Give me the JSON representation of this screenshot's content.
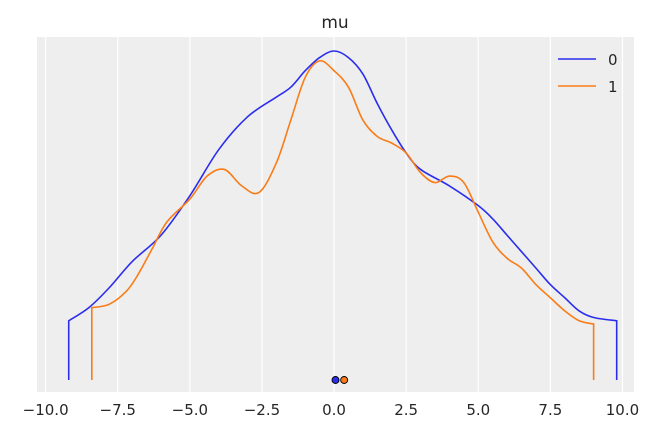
{
  "chart_data": {
    "type": "line",
    "title": "mu",
    "xlabel": "",
    "ylabel": "",
    "xlim": [
      -10.3,
      10.4
    ],
    "ylim": [
      0,
      1
    ],
    "grid": true,
    "y_ticks_shown": false,
    "x_ticks": [
      -10.0,
      -7.5,
      -5.0,
      -2.5,
      0.0,
      2.5,
      5.0,
      7.5,
      10.0
    ],
    "x_tick_labels": [
      "−10.0",
      "−7.5",
      "−5.0",
      "−2.5",
      "0.0",
      "2.5",
      "5.0",
      "7.5",
      "10.0"
    ],
    "legend_position": "top-right",
    "series": [
      {
        "name": "0",
        "color": "#2a2eec",
        "x": [
          -9.2,
          -8.5,
          -7.8,
          -7.0,
          -6.0,
          -5.0,
          -4.0,
          -3.0,
          -2.0,
          -1.5,
          -1.0,
          -0.5,
          0.0,
          0.5,
          1.0,
          1.5,
          2.0,
          2.5,
          3.0,
          4.0,
          5.0,
          5.5,
          6.0,
          6.5,
          7.0,
          7.5,
          8.0,
          8.5,
          9.0,
          9.8
        ],
        "y": [
          0.18,
          0.22,
          0.28,
          0.36,
          0.44,
          0.56,
          0.7,
          0.8,
          0.86,
          0.89,
          0.94,
          0.98,
          1.0,
          0.98,
          0.93,
          0.84,
          0.76,
          0.69,
          0.64,
          0.59,
          0.53,
          0.49,
          0.44,
          0.39,
          0.34,
          0.29,
          0.25,
          0.21,
          0.19,
          0.18
        ],
        "marker_x": 0.05
      },
      {
        "name": "1",
        "color": "#fa7c17",
        "x": [
          -8.4,
          -7.8,
          -7.2,
          -6.8,
          -6.3,
          -5.8,
          -5.0,
          -4.4,
          -3.8,
          -3.2,
          -2.6,
          -2.0,
          -1.5,
          -1.0,
          -0.5,
          0.0,
          0.5,
          1.0,
          1.5,
          2.0,
          2.5,
          3.0,
          3.5,
          4.0,
          4.5,
          5.0,
          5.5,
          6.0,
          6.5,
          7.0,
          7.5,
          8.0,
          8.5,
          9.0
        ],
        "y": [
          0.22,
          0.23,
          0.27,
          0.32,
          0.4,
          0.48,
          0.55,
          0.62,
          0.64,
          0.59,
          0.57,
          0.66,
          0.79,
          0.92,
          0.97,
          0.94,
          0.89,
          0.79,
          0.74,
          0.72,
          0.69,
          0.63,
          0.6,
          0.62,
          0.6,
          0.51,
          0.42,
          0.37,
          0.34,
          0.29,
          0.25,
          0.21,
          0.18,
          0.17
        ],
        "marker_x": 0.35
      }
    ]
  }
}
